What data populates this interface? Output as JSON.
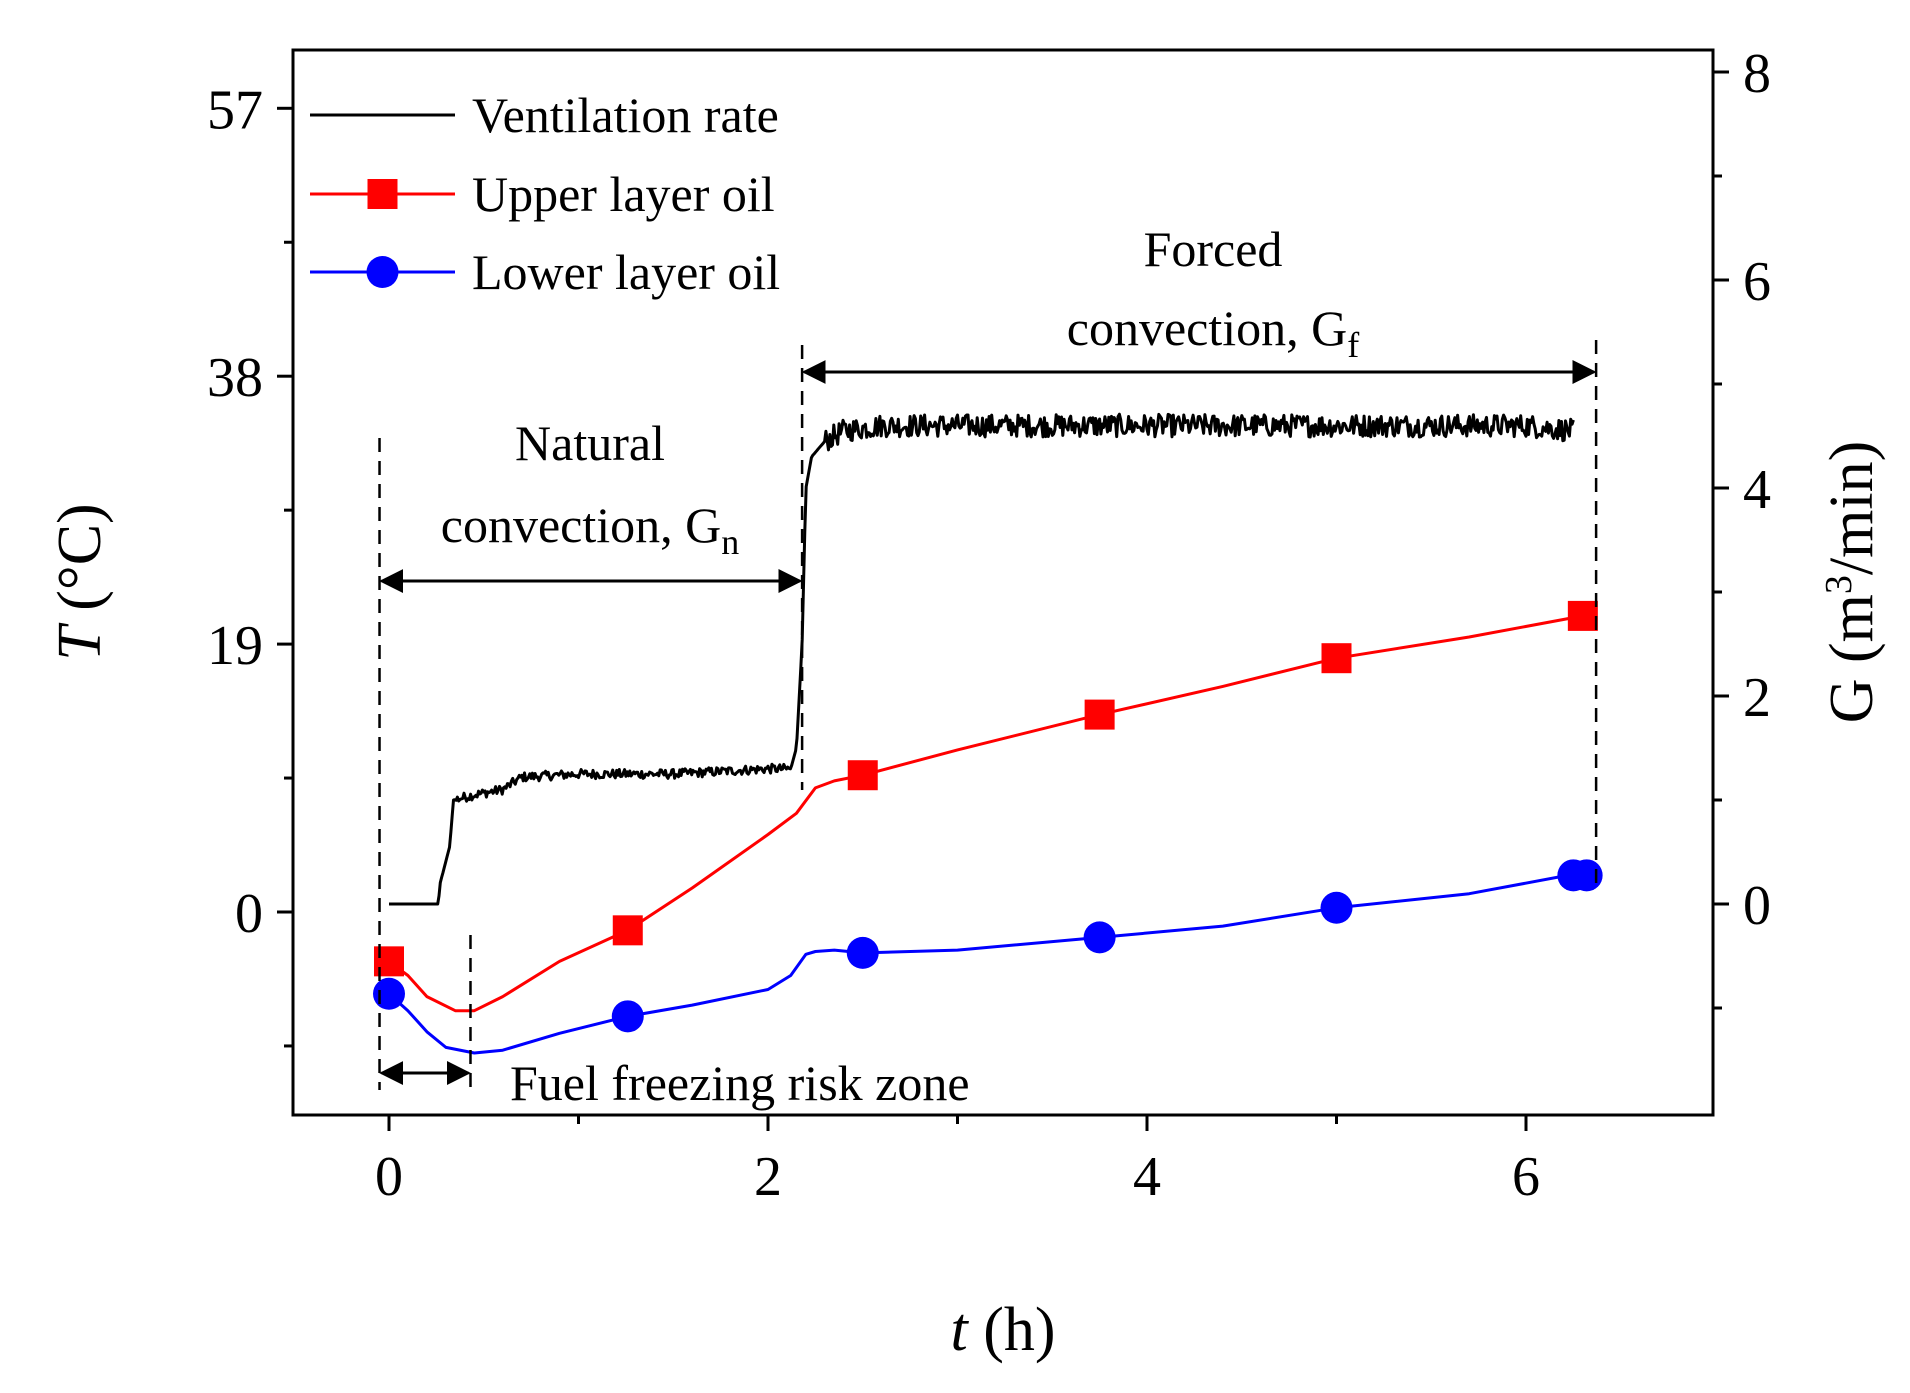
{
  "chart_data": {
    "type": "line",
    "title": "",
    "x_axis": {
      "label_var": "t",
      "label_unit": " (h)",
      "range": [
        -0.5,
        7
      ],
      "ticks": [
        0,
        2,
        4,
        6
      ],
      "minor_ticks": [
        1,
        3,
        5
      ]
    },
    "y_left": {
      "label_var": "T",
      "label_unit": " (°C)",
      "range": [
        -13.5,
        62
      ],
      "ticks": [
        0,
        19,
        38,
        57
      ],
      "tick_labels": [
        "0",
        "19",
        "38",
        "57"
      ]
    },
    "y_right": {
      "label_main": "G (m",
      "label_sup": "3",
      "label_end": "/min)",
      "range": [
        -2,
        8
      ],
      "ticks": [
        0,
        2,
        4,
        6,
        8
      ]
    },
    "legend": {
      "position": "top-left",
      "entries": [
        {
          "label": "Ventilation rate",
          "color": "#000000",
          "marker": "none"
        },
        {
          "label": "Upper layer oil",
          "color": "#ff0000",
          "marker": "square"
        },
        {
          "label": "Lower layer oil",
          "color": "#0000ff",
          "marker": "circle"
        }
      ]
    },
    "series": [
      {
        "name": "Ventilation rate",
        "axis": "right",
        "color": "#000000",
        "noisy": true,
        "x": [
          0.0,
          0.26,
          0.27,
          0.32,
          0.34,
          0.45,
          0.6,
          0.7,
          1.0,
          1.5,
          2.0,
          2.12,
          2.15,
          2.18,
          2.2,
          2.23,
          2.3,
          2.4,
          2.6,
          3.0,
          4.0,
          5.0,
          6.0,
          6.25
        ],
        "y": [
          0.0,
          0.0,
          0.2,
          0.55,
          1.0,
          1.05,
          1.1,
          1.22,
          1.25,
          1.25,
          1.3,
          1.3,
          1.5,
          2.5,
          4.0,
          4.3,
          4.45,
          4.55,
          4.6,
          4.6,
          4.6,
          4.6,
          4.6,
          4.55
        ]
      },
      {
        "name": "Upper layer oil",
        "axis": "left",
        "color": "#ff0000",
        "x": [
          0.0,
          0.1,
          0.2,
          0.35,
          0.45,
          0.6,
          0.9,
          1.26,
          1.6,
          2.0,
          2.15,
          2.25,
          2.35,
          2.5,
          3.0,
          3.75,
          4.4,
          5.0,
          5.7,
          6.3
        ],
        "y": [
          -3.5,
          -4.5,
          -6.0,
          -7.0,
          -7.0,
          -6.0,
          -3.5,
          -1.3,
          1.7,
          5.5,
          7.0,
          8.8,
          9.3,
          9.7,
          11.5,
          14.0,
          16.0,
          18.0,
          19.5,
          21.0
        ],
        "markers": {
          "x": [
            0.0,
            1.26,
            2.5,
            3.75,
            5.0,
            6.3
          ],
          "y": [
            -3.5,
            -1.3,
            9.7,
            14.0,
            18.0,
            21.0
          ]
        }
      },
      {
        "name": "Lower layer oil",
        "axis": "left",
        "color": "#0000ff",
        "x": [
          0.0,
          0.1,
          0.2,
          0.3,
          0.45,
          0.6,
          0.9,
          1.26,
          1.6,
          2.0,
          2.12,
          2.2,
          2.25,
          2.35,
          2.5,
          3.0,
          3.75,
          4.4,
          5.0,
          5.7,
          6.3
        ],
        "y": [
          -5.8,
          -7.0,
          -8.5,
          -9.6,
          -10.0,
          -9.8,
          -8.6,
          -7.4,
          -6.6,
          -5.5,
          -4.5,
          -3.0,
          -2.8,
          -2.7,
          -2.9,
          -2.7,
          -1.8,
          -1.0,
          0.3,
          1.3,
          2.8
        ],
        "markers": {
          "x": [
            0.0,
            1.26,
            2.5,
            3.75,
            5.0,
            6.25,
            6.32
          ],
          "y": [
            -5.8,
            -7.4,
            -2.9,
            -1.8,
            0.3,
            2.6,
            2.6
          ]
        }
      }
    ],
    "annotations": {
      "natural": {
        "line1": "Natural",
        "line2": "convection, G",
        "sub": "n",
        "span": [
          -0.05,
          2.18
        ]
      },
      "forced": {
        "line1": "Forced",
        "line2": "convection, G",
        "sub": "f",
        "span": [
          2.18,
          6.37
        ]
      },
      "freezing": {
        "text": "Fuel freezing risk zone",
        "span": [
          -0.05,
          0.43
        ]
      }
    }
  }
}
